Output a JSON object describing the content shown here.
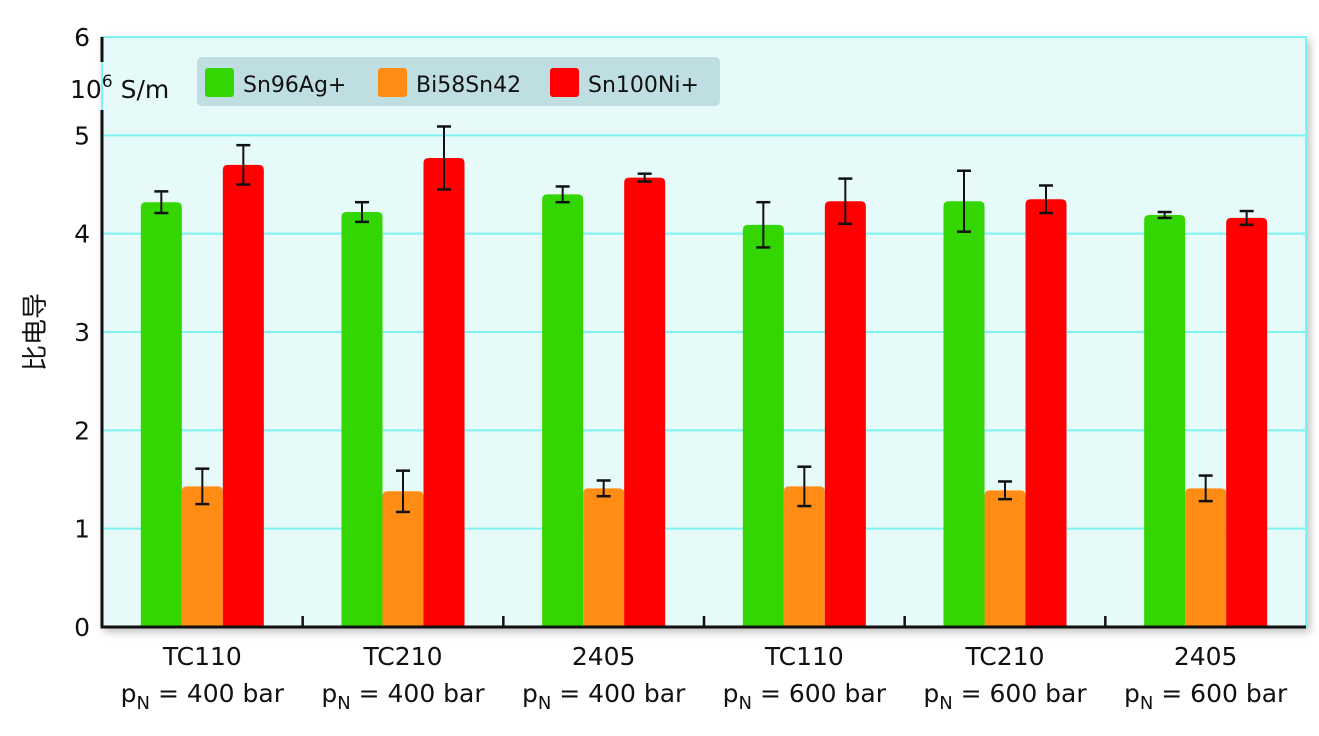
{
  "chart_data": {
    "type": "bar",
    "title": "",
    "ylabel": "比电导",
    "yunit_base": "10",
    "yunit_exp": "6",
    "yunit_rest": " S/m",
    "xlabel": "",
    "ylim": [
      0,
      6
    ],
    "yticks": [
      0,
      1,
      2,
      3,
      4,
      5,
      6
    ],
    "grid": true,
    "legend_position": "top-left",
    "categories": [
      {
        "line1": "TC110",
        "line2_p": "p",
        "line2_sub": "N",
        "line2_rest": " = 400 bar"
      },
      {
        "line1": "TC210",
        "line2_p": "p",
        "line2_sub": "N",
        "line2_rest": " = 400 bar"
      },
      {
        "line1": "2405",
        "line2_p": "p",
        "line2_sub": "N",
        "line2_rest": " = 400 bar"
      },
      {
        "line1": "TC110",
        "line2_p": "p",
        "line2_sub": "N",
        "line2_rest": " = 600 bar"
      },
      {
        "line1": "TC210",
        "line2_p": "p",
        "line2_sub": "N",
        "line2_rest": " = 600 bar"
      },
      {
        "line1": "2405",
        "line2_p": "p",
        "line2_sub": "N",
        "line2_rest": " = 600 bar"
      }
    ],
    "series": [
      {
        "name": "Sn96Ag+",
        "color": "#33d600",
        "values": [
          4.32,
          4.22,
          4.4,
          4.09,
          4.33,
          4.19
        ],
        "errors": [
          0.11,
          0.1,
          0.08,
          0.23,
          0.31,
          0.03
        ]
      },
      {
        "name": "Bi58Sn42",
        "color": "#ff8c14",
        "values": [
          1.43,
          1.38,
          1.41,
          1.43,
          1.39,
          1.41
        ],
        "errors": [
          0.18,
          0.21,
          0.08,
          0.2,
          0.09,
          0.13
        ]
      },
      {
        "name": "Sn100Ni+",
        "color": "#ff0000",
        "values": [
          4.7,
          4.77,
          4.57,
          4.33,
          4.35,
          4.16
        ],
        "errors": [
          0.2,
          0.32,
          0.04,
          0.23,
          0.14,
          0.07
        ]
      }
    ],
    "colors": {
      "plot_background": "#e6fafa",
      "gridline": "#7ff2f2",
      "legend_background": "#bfdee2"
    }
  }
}
